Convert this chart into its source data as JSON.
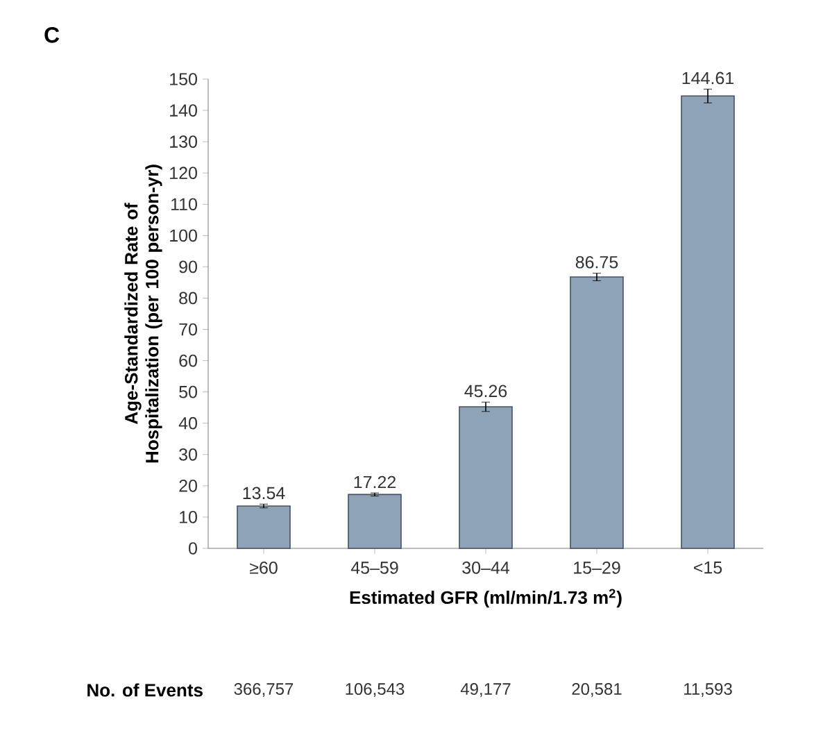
{
  "chart_data": {
    "type": "bar",
    "title": "C",
    "xlabel": "Estimated GFR (ml/min/1.73 m$^{2}$)",
    "ylabel": "Age-Standardized Rate of Hospitalization (per 100 person-yr)",
    "categories": [
      "≥60",
      "45–59",
      "30–44",
      "15–29",
      "<15"
    ],
    "values": [
      13.54,
      17.22,
      45.26,
      86.75,
      144.61
    ],
    "errors": [
      0.6,
      0.5,
      1.5,
      1.2,
      2.2
    ],
    "color": "#8fa3b8",
    "data_labels": true,
    "ylim": [
      0,
      150
    ],
    "yticks": [
      0,
      10,
      20,
      30,
      40,
      50,
      60,
      70,
      80,
      90,
      100,
      110,
      120,
      130,
      140,
      150
    ],
    "grid": false,
    "annotations": [
      "No. of Events",
      "366,757",
      "106,543",
      "49,177",
      "20,581",
      "11,593"
    ]
  }
}
